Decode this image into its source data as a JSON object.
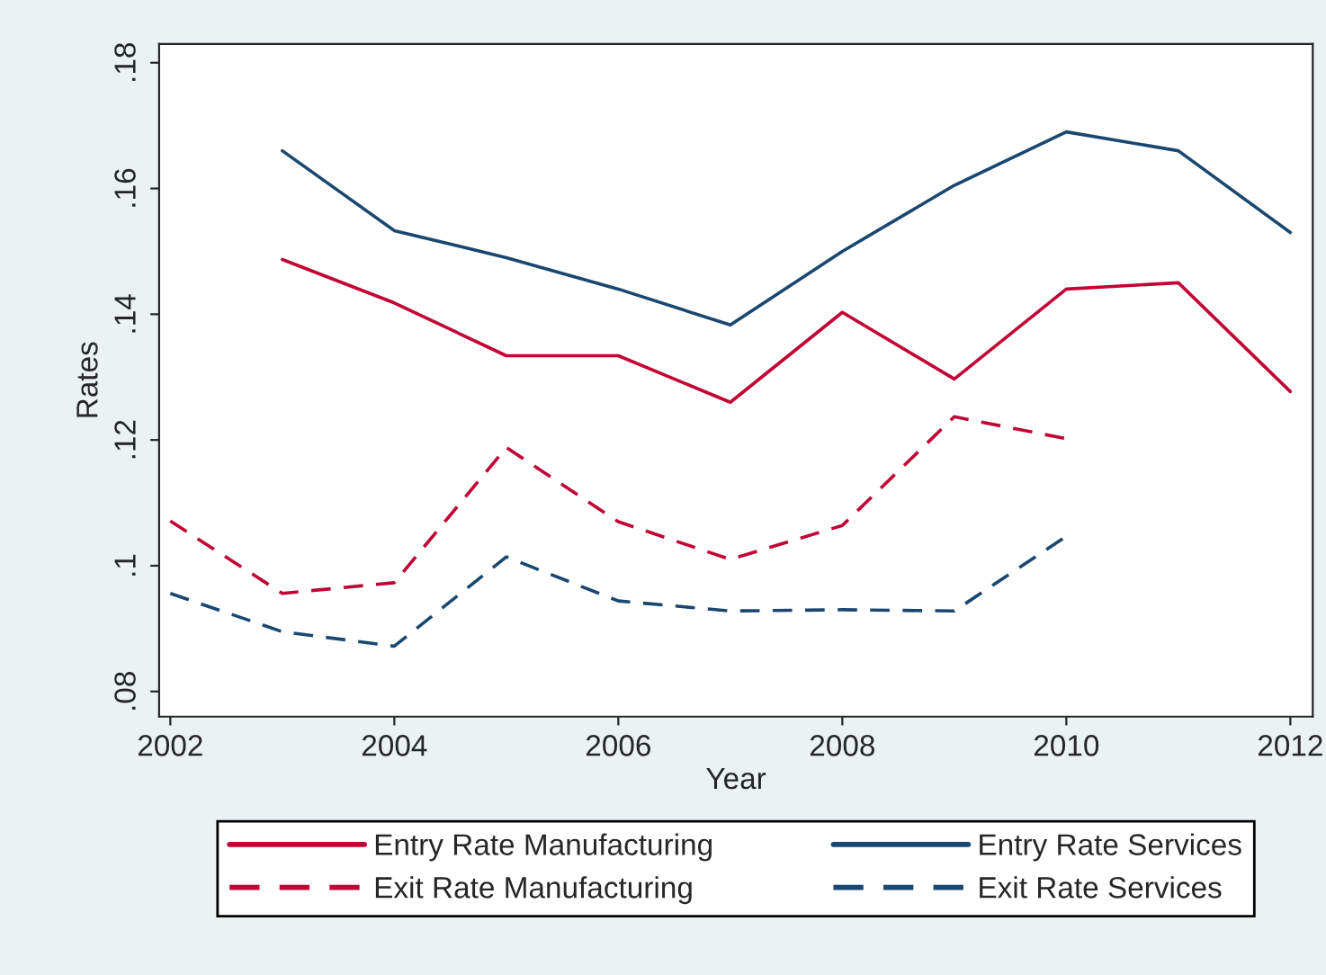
{
  "chart_data": {
    "type": "line",
    "xlabel": "Year",
    "ylabel": "Rates",
    "x": [
      2002,
      2003,
      2004,
      2005,
      2006,
      2007,
      2008,
      2009,
      2010,
      2011,
      2012
    ],
    "series": [
      {
        "name": "Entry Rate Manufacturing",
        "color": "#c10534",
        "line_style": "solid",
        "values": [
          null,
          0.1487,
          0.1418,
          0.1334,
          0.1334,
          0.126,
          0.1403,
          0.1297,
          0.144,
          0.145,
          0.1277
        ]
      },
      {
        "name": "Entry Rate Services",
        "color": "#1a476f",
        "line_style": "solid",
        "values": [
          null,
          0.166,
          0.1533,
          0.149,
          0.144,
          0.1383,
          0.15,
          0.1605,
          0.169,
          0.166,
          0.153
        ]
      },
      {
        "name": "Exit Rate Manufacturing",
        "color": "#c10534",
        "line_style": "dashed",
        "values": [
          0.1071,
          0.0956,
          0.0973,
          0.1188,
          0.107,
          0.101,
          0.1064,
          0.1237,
          0.1202,
          null,
          null
        ]
      },
      {
        "name": "Exit Rate Services",
        "color": "#1a476f",
        "line_style": "dashed",
        "values": [
          0.0956,
          0.0895,
          0.0872,
          0.1014,
          0.0944,
          0.0928,
          0.093,
          0.0928,
          0.1047,
          null,
          null
        ]
      }
    ],
    "xlim": [
      2001.9,
      2012.2
    ],
    "xticks": [
      2002,
      2004,
      2006,
      2008,
      2010,
      2012
    ],
    "ylim": [
      0.076,
      0.183
    ],
    "yticks": [
      {
        "value": 0.08,
        "label": ".08"
      },
      {
        "value": 0.1,
        "label": ".1"
      },
      {
        "value": 0.12,
        "label": ".12"
      },
      {
        "value": 0.14,
        "label": ".14"
      },
      {
        "value": 0.16,
        "label": ".16"
      },
      {
        "value": 0.18,
        "label": ".18"
      }
    ],
    "grid": false,
    "legend": "bottom",
    "marker": "none"
  }
}
